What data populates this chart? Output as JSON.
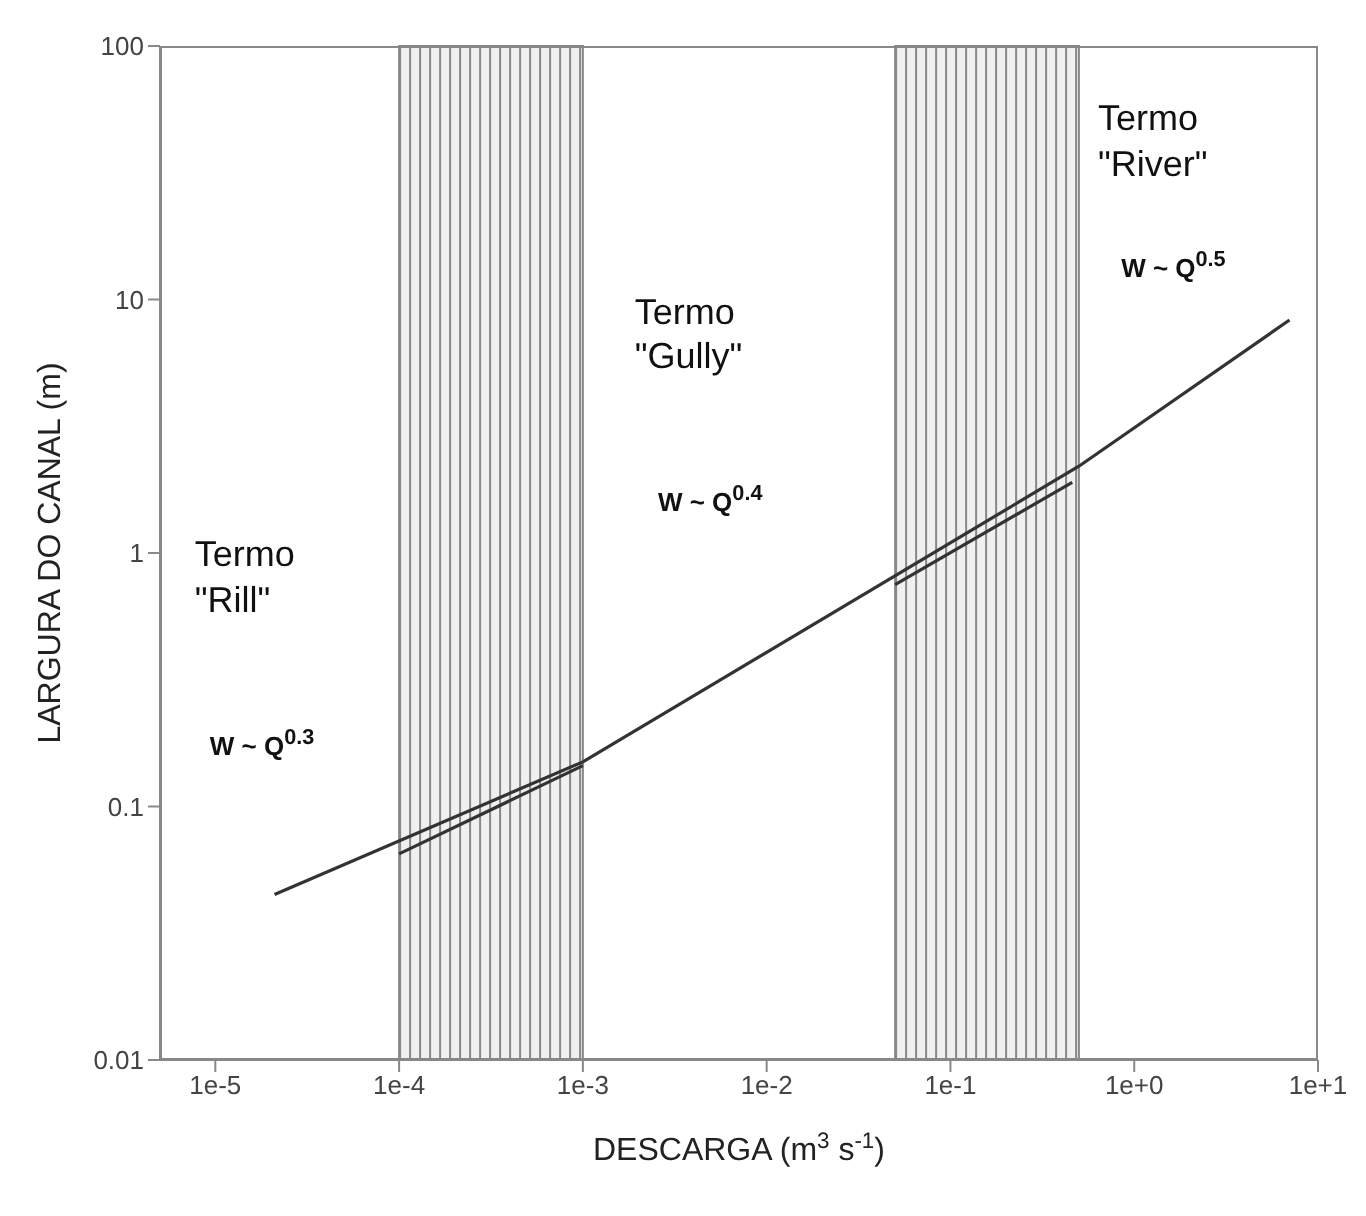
{
  "chart_data": {
    "type": "line",
    "xlabel": "DESCARGA (m$^{3}$ s$^{-1}$)",
    "ylabel": "LARGURA DO CANAL (m)",
    "log": "xy",
    "marker": "none",
    "line_style": "solid",
    "xlim": [
      5e-06,
      10
    ],
    "xticks": [
      {
        "value": 1e-05,
        "label": "1e-5"
      },
      {
        "value": 0.0001,
        "label": "1e-4"
      },
      {
        "value": 0.001,
        "label": "1e-3"
      },
      {
        "value": 0.01,
        "label": "1e-2"
      },
      {
        "value": 0.1,
        "label": "1e-1"
      },
      {
        "value": 1,
        "label": "1e+0"
      },
      {
        "value": 10,
        "label": "1e+1"
      }
    ],
    "ylim": [
      0.01,
      100
    ],
    "yticks": [
      0.01,
      0.1,
      1,
      10,
      100
    ],
    "series": [
      {
        "color": "#333333",
        "x": [
          2.1e-05,
          0.001,
          0.5,
          7
        ],
        "values": [
          0.045,
          0.15,
          2.2,
          8.3
        ]
      },
      {
        "color": "#333333",
        "x": [
          0.0001,
          0.001
        ],
        "values": [
          0.065,
          0.145
        ]
      },
      {
        "color": "#333333",
        "x": [
          0.05,
          0.46
        ],
        "values": [
          0.75,
          1.9
        ]
      }
    ],
    "bands": [
      {
        "axis": "x",
        "from": 0.0001,
        "to": 0.001,
        "color": "#888888"
      },
      {
        "axis": "x",
        "from": 0.05,
        "to": 0.5,
        "color": "#888888"
      }
    ],
    "annotations": [
      "Termo\n\"Rill\"",
      "W ~ Q$^{0.3}$",
      "Termo\n\"Gully\"",
      "W ~ Q$^{0.4}$",
      "Termo\n\"River\"",
      "W ~ Q$^{0.5}$"
    ]
  }
}
